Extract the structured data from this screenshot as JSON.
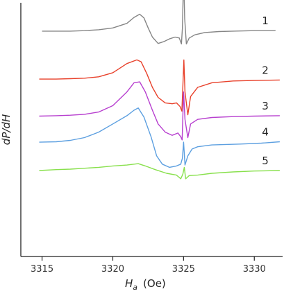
{
  "chart_data": {
    "type": "line",
    "title": "",
    "xlabel_main": "H",
    "xlabel_sub": "a",
    "xlabel_unit": "(Oe)",
    "ylabel": "dP/dH",
    "xlim": [
      3313.5,
      3332
    ],
    "ylim": [
      -5.2,
      0.35
    ],
    "x_ticks": [
      3315,
      3320,
      3325,
      3330
    ],
    "x_tick_labels": [
      "3315",
      "3320",
      "3325",
      "3330"
    ],
    "grid": false,
    "series": [
      {
        "name": "1",
        "color": "#858585",
        "points": [
          [
            3315.0,
            -0.27
          ],
          [
            3316.0,
            -0.27
          ],
          [
            3317.0,
            -0.27
          ],
          [
            3318.0,
            -0.26
          ],
          [
            3319.0,
            -0.24
          ],
          [
            3320.0,
            -0.2
          ],
          [
            3321.0,
            -0.1
          ],
          [
            3321.5,
            0.03
          ],
          [
            3321.9,
            0.1
          ],
          [
            3322.2,
            0.02
          ],
          [
            3322.5,
            -0.2
          ],
          [
            3322.8,
            -0.4
          ],
          [
            3323.2,
            -0.54
          ],
          [
            3323.6,
            -0.5
          ],
          [
            3324.0,
            -0.44
          ],
          [
            3324.4,
            -0.4
          ],
          [
            3324.7,
            -0.42
          ],
          [
            3324.85,
            -0.55
          ],
          [
            3324.92,
            -0.2
          ],
          [
            3325.0,
            0.95
          ],
          [
            3325.08,
            0.0
          ],
          [
            3325.2,
            -0.55
          ],
          [
            3325.4,
            -0.42
          ],
          [
            3325.8,
            -0.35
          ],
          [
            3326.5,
            -0.3
          ],
          [
            3327.5,
            -0.28
          ],
          [
            3328.5,
            -0.27
          ],
          [
            3330.0,
            -0.26
          ],
          [
            3331.5,
            -0.26
          ]
        ]
      },
      {
        "name": "2",
        "color": "#e8402a",
        "points": [
          [
            3314.8,
            -1.32
          ],
          [
            3316.0,
            -1.32
          ],
          [
            3317.0,
            -1.31
          ],
          [
            3318.0,
            -1.3
          ],
          [
            3319.0,
            -1.27
          ],
          [
            3320.0,
            -1.18
          ],
          [
            3321.0,
            -0.98
          ],
          [
            3321.7,
            -0.9
          ],
          [
            3322.0,
            -0.94
          ],
          [
            3322.4,
            -1.2
          ],
          [
            3322.8,
            -1.5
          ],
          [
            3323.2,
            -1.72
          ],
          [
            3323.7,
            -1.84
          ],
          [
            3324.2,
            -1.86
          ],
          [
            3324.5,
            -1.84
          ],
          [
            3324.75,
            -1.92
          ],
          [
            3324.88,
            -2.02
          ],
          [
            3324.95,
            -1.5
          ],
          [
            3325.02,
            -0.9
          ],
          [
            3325.1,
            -1.6
          ],
          [
            3325.3,
            -2.1
          ],
          [
            3325.5,
            -1.7
          ],
          [
            3326.0,
            -1.5
          ],
          [
            3327.0,
            -1.4
          ],
          [
            3328.5,
            -1.36
          ],
          [
            3330.0,
            -1.35
          ],
          [
            3331.8,
            -1.34
          ]
        ]
      },
      {
        "name": "3",
        "color": "#b73fcf",
        "points": [
          [
            3314.8,
            -2.13
          ],
          [
            3316.0,
            -2.12
          ],
          [
            3317.0,
            -2.11
          ],
          [
            3318.0,
            -2.09
          ],
          [
            3319.0,
            -2.04
          ],
          [
            3320.0,
            -1.9
          ],
          [
            3321.0,
            -1.6
          ],
          [
            3321.5,
            -1.4
          ],
          [
            3321.9,
            -1.38
          ],
          [
            3322.3,
            -1.6
          ],
          [
            3322.8,
            -2.0
          ],
          [
            3323.2,
            -2.3
          ],
          [
            3323.7,
            -2.48
          ],
          [
            3324.2,
            -2.55
          ],
          [
            3324.6,
            -2.5
          ],
          [
            3324.8,
            -2.58
          ],
          [
            3324.9,
            -2.65
          ],
          [
            3325.0,
            -1.6
          ],
          [
            3325.1,
            -2.2
          ],
          [
            3325.3,
            -2.6
          ],
          [
            3325.5,
            -2.3
          ],
          [
            3326.0,
            -2.2
          ],
          [
            3327.0,
            -2.16
          ],
          [
            3328.5,
            -2.14
          ],
          [
            3330.0,
            -2.13
          ],
          [
            3331.8,
            -2.12
          ]
        ]
      },
      {
        "name": "4",
        "color": "#5c9fe0",
        "points": [
          [
            3314.8,
            -2.7
          ],
          [
            3316.0,
            -2.69
          ],
          [
            3317.0,
            -2.66
          ],
          [
            3318.0,
            -2.6
          ],
          [
            3319.0,
            -2.48
          ],
          [
            3320.0,
            -2.3
          ],
          [
            3321.0,
            -2.12
          ],
          [
            3321.5,
            -2.0
          ],
          [
            3321.8,
            -1.95
          ],
          [
            3322.2,
            -2.15
          ],
          [
            3322.7,
            -2.58
          ],
          [
            3323.1,
            -3.0
          ],
          [
            3323.5,
            -3.18
          ],
          [
            3324.0,
            -3.25
          ],
          [
            3324.5,
            -3.22
          ],
          [
            3324.8,
            -3.18
          ],
          [
            3324.92,
            -3.05
          ],
          [
            3325.0,
            -2.7
          ],
          [
            3325.1,
            -3.2
          ],
          [
            3325.3,
            -3.0
          ],
          [
            3325.6,
            -2.85
          ],
          [
            3326.0,
            -2.8
          ],
          [
            3327.0,
            -2.76
          ],
          [
            3328.0,
            -2.75
          ],
          [
            3329.0,
            -2.74
          ],
          [
            3330.5,
            -2.72
          ],
          [
            3331.8,
            -2.69
          ]
        ]
      },
      {
        "name": "5",
        "color": "#88e04c",
        "points": [
          [
            3314.8,
            -3.32
          ],
          [
            3316.0,
            -3.3
          ],
          [
            3317.0,
            -3.29
          ],
          [
            3318.0,
            -3.27
          ],
          [
            3319.0,
            -3.25
          ],
          [
            3320.0,
            -3.22
          ],
          [
            3321.0,
            -3.2
          ],
          [
            3321.8,
            -3.17
          ],
          [
            3322.3,
            -3.22
          ],
          [
            3323.0,
            -3.3
          ],
          [
            3323.8,
            -3.38
          ],
          [
            3324.5,
            -3.42
          ],
          [
            3324.8,
            -3.5
          ],
          [
            3324.95,
            -3.4
          ],
          [
            3325.05,
            -3.25
          ],
          [
            3325.15,
            -3.5
          ],
          [
            3325.4,
            -3.43
          ],
          [
            3326.0,
            -3.42
          ],
          [
            3327.0,
            -3.38
          ],
          [
            3328.5,
            -3.35
          ],
          [
            3330.0,
            -3.33
          ],
          [
            3331.8,
            -3.32
          ]
        ]
      }
    ]
  }
}
